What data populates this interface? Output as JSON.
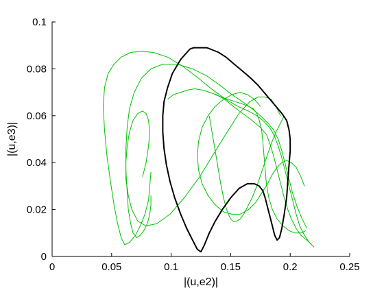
{
  "chart_data": {
    "type": "line",
    "title": "",
    "xlabel": "|(u,e2)|",
    "ylabel": "|(u,e3)|",
    "xlim": [
      0,
      0.25
    ],
    "ylim": [
      0,
      0.1
    ],
    "xticks": [
      0,
      0.05,
      0.1,
      0.15,
      0.2,
      0.25
    ],
    "yticks": [
      0,
      0.02,
      0.04,
      0.06,
      0.08,
      0.1
    ],
    "xtick_labels": [
      "0",
      "0.05",
      "0.1",
      "0.15",
      "0.2",
      "0.25"
    ],
    "ytick_labels": [
      "0",
      "0.02",
      "0.04",
      "0.06",
      "0.08",
      "0.1"
    ],
    "grid": false,
    "legend": "none",
    "series": [
      {
        "color": "#00c000",
        "style": "thin",
        "x": [
          0.083,
          0.082,
          0.081,
          0.078,
          0.074,
          0.07,
          0.065,
          0.061,
          0.058,
          0.055,
          0.052,
          0.049,
          0.046,
          0.044,
          0.043,
          0.044,
          0.047,
          0.052,
          0.058,
          0.066,
          0.075,
          0.085,
          0.097,
          0.11,
          0.123,
          0.135,
          0.146,
          0.156,
          0.165,
          0.172,
          0.177,
          0.181,
          0.184,
          0.187,
          0.19,
          0.193,
          0.196,
          0.199,
          0.202,
          0.205,
          0.208,
          0.212,
          0.216,
          0.22
        ],
        "y": [
          0.036,
          0.03,
          0.024,
          0.018,
          0.013,
          0.009,
          0.006,
          0.005,
          0.008,
          0.014,
          0.022,
          0.032,
          0.043,
          0.054,
          0.064,
          0.072,
          0.078,
          0.082,
          0.085,
          0.087,
          0.0875,
          0.087,
          0.085,
          0.081,
          0.076,
          0.071,
          0.067,
          0.064,
          0.062,
          0.06,
          0.058,
          0.056,
          0.054,
          0.051,
          0.047,
          0.042,
          0.036,
          0.03,
          0.024,
          0.018,
          0.013,
          0.009,
          0.006,
          0.004
        ]
      },
      {
        "color": "#00c000",
        "style": "thin",
        "x": [
          0.097,
          0.102,
          0.108,
          0.114,
          0.12,
          0.126,
          0.132,
          0.138,
          0.145,
          0.152,
          0.16,
          0.168,
          0.175,
          0.18,
          0.183,
          0.186,
          0.189,
          0.192,
          0.195,
          0.198,
          0.201,
          0.205,
          0.209,
          0.214,
          0.218
        ],
        "y": [
          0.067,
          0.069,
          0.07,
          0.071,
          0.0715,
          0.071,
          0.07,
          0.069,
          0.067,
          0.064,
          0.061,
          0.058,
          0.055,
          0.052,
          0.048,
          0.043,
          0.037,
          0.031,
          0.025,
          0.02,
          0.016,
          0.012,
          0.009,
          0.007,
          0.005
        ]
      },
      {
        "color": "#00c000",
        "style": "thin",
        "x": [
          0.083,
          0.083,
          0.082,
          0.08,
          0.077,
          0.074,
          0.071,
          0.068,
          0.066,
          0.064,
          0.063,
          0.062,
          0.062,
          0.063,
          0.065,
          0.069,
          0.075,
          0.083,
          0.093,
          0.105,
          0.118,
          0.13,
          0.141,
          0.151,
          0.16,
          0.168,
          0.175,
          0.181,
          0.186,
          0.19,
          0.193,
          0.196,
          0.199,
          0.202,
          0.206,
          0.21,
          0.214
        ],
        "y": [
          0.026,
          0.022,
          0.018,
          0.014,
          0.011,
          0.009,
          0.008,
          0.01,
          0.014,
          0.02,
          0.028,
          0.037,
          0.046,
          0.055,
          0.063,
          0.07,
          0.076,
          0.08,
          0.082,
          0.082,
          0.08,
          0.077,
          0.073,
          0.069,
          0.066,
          0.063,
          0.06,
          0.057,
          0.054,
          0.05,
          0.045,
          0.039,
          0.033,
          0.027,
          0.021,
          0.016,
          0.012
        ]
      },
      {
        "color": "#00c000",
        "style": "thin",
        "x": [
          0.076,
          0.079,
          0.081,
          0.082,
          0.081,
          0.079,
          0.076,
          0.072,
          0.068,
          0.065,
          0.063,
          0.062,
          0.062,
          0.064,
          0.067,
          0.072,
          0.079,
          0.088,
          0.099,
          0.111,
          0.124,
          0.136,
          0.147,
          0.157,
          0.166,
          0.173,
          0.179,
          0.184,
          0.188,
          0.192
        ],
        "y": [
          0.034,
          0.04,
          0.047,
          0.053,
          0.058,
          0.061,
          0.062,
          0.061,
          0.058,
          0.053,
          0.047,
          0.04,
          0.033,
          0.026,
          0.02,
          0.015,
          0.013,
          0.014,
          0.018,
          0.025,
          0.034,
          0.044,
          0.053,
          0.061,
          0.066,
          0.068,
          0.068,
          0.067,
          0.064,
          0.06
        ]
      },
      {
        "color": "#00c000",
        "style": "thin",
        "x": [
          0.175,
          0.17,
          0.164,
          0.158,
          0.151,
          0.144,
          0.137,
          0.131,
          0.126,
          0.123,
          0.122,
          0.123,
          0.126,
          0.131,
          0.137,
          0.144,
          0.151,
          0.158,
          0.165,
          0.171,
          0.176,
          0.181,
          0.185,
          0.189,
          0.193,
          0.197,
          0.201,
          0.205,
          0.209,
          0.212
        ],
        "y": [
          0.064,
          0.067,
          0.069,
          0.07,
          0.069,
          0.067,
          0.064,
          0.06,
          0.055,
          0.049,
          0.043,
          0.037,
          0.031,
          0.026,
          0.022,
          0.019,
          0.018,
          0.018,
          0.02,
          0.023,
          0.027,
          0.031,
          0.035,
          0.038,
          0.04,
          0.041,
          0.04,
          0.038,
          0.034,
          0.03
        ]
      },
      {
        "color": "#00c000",
        "style": "thin",
        "x": [
          0.137,
          0.142,
          0.148,
          0.154,
          0.16,
          0.165,
          0.169,
          0.172,
          0.174,
          0.176,
          0.177,
          0.178,
          0.179,
          0.18,
          0.182,
          0.185,
          0.189,
          0.194,
          0.199,
          0.204,
          0.209,
          0.213
        ],
        "y": [
          0.069,
          0.068,
          0.067,
          0.066,
          0.065,
          0.064,
          0.063,
          0.061,
          0.058,
          0.054,
          0.049,
          0.043,
          0.037,
          0.031,
          0.025,
          0.02,
          0.016,
          0.013,
          0.011,
          0.01,
          0.01,
          0.011
        ]
      },
      {
        "color": "#00c000",
        "style": "thin",
        "x": [
          0.132,
          0.134,
          0.136,
          0.138,
          0.14,
          0.142,
          0.144,
          0.146,
          0.148,
          0.15,
          0.152,
          0.155,
          0.158,
          0.161,
          0.164,
          0.168,
          0.172,
          0.176,
          0.18,
          0.184,
          0.188,
          0.192,
          0.195
        ],
        "y": [
          0.06,
          0.054,
          0.048,
          0.042,
          0.036,
          0.03,
          0.025,
          0.021,
          0.018,
          0.016,
          0.015,
          0.015,
          0.016,
          0.018,
          0.021,
          0.025,
          0.03,
          0.036,
          0.042,
          0.048,
          0.053,
          0.057,
          0.06
        ]
      },
      {
        "color": "#000000",
        "style": "thick",
        "x": [
          0.115,
          0.108,
          0.101,
          0.097,
          0.094,
          0.093,
          0.093,
          0.094,
          0.096,
          0.099,
          0.103,
          0.108,
          0.113,
          0.118,
          0.122,
          0.125,
          0.128,
          0.132,
          0.137,
          0.143,
          0.15,
          0.157,
          0.164,
          0.17,
          0.174,
          0.177,
          0.179,
          0.181,
          0.183,
          0.185,
          0.187,
          0.189,
          0.191,
          0.193,
          0.195,
          0.197,
          0.198,
          0.199,
          0.2,
          0.2,
          0.199,
          0.197,
          0.193,
          0.188,
          0.183,
          0.178,
          0.173,
          0.167,
          0.16,
          0.153,
          0.146,
          0.14,
          0.135,
          0.13,
          0.126,
          0.122,
          0.119,
          0.116,
          0.115
        ],
        "y": [
          0.088,
          0.084,
          0.078,
          0.072,
          0.066,
          0.06,
          0.053,
          0.046,
          0.039,
          0.032,
          0.025,
          0.018,
          0.012,
          0.007,
          0.003,
          0.002,
          0.005,
          0.01,
          0.015,
          0.02,
          0.025,
          0.029,
          0.031,
          0.031,
          0.03,
          0.028,
          0.025,
          0.021,
          0.017,
          0.013,
          0.009,
          0.007,
          0.008,
          0.012,
          0.018,
          0.025,
          0.032,
          0.039,
          0.045,
          0.05,
          0.054,
          0.058,
          0.061,
          0.064,
          0.067,
          0.07,
          0.073,
          0.076,
          0.079,
          0.082,
          0.085,
          0.087,
          0.088,
          0.089,
          0.089,
          0.089,
          0.089,
          0.0885,
          0.088
        ]
      }
    ]
  }
}
